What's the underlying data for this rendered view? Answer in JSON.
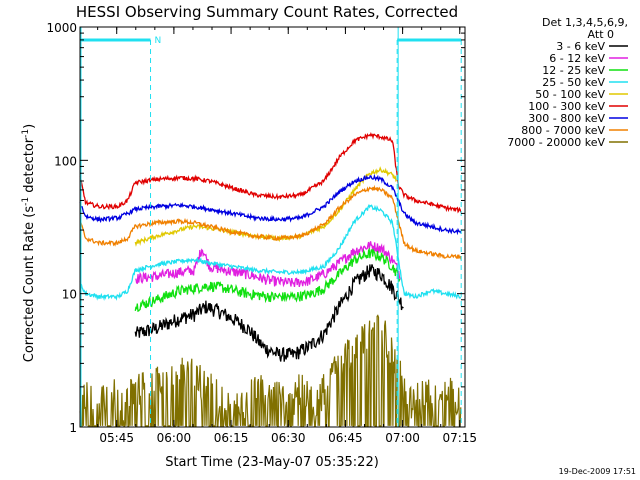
{
  "chart_data": {
    "type": "line",
    "title": "HESSI Observing Summary Count Rates, Corrected",
    "xlabel": "Start Time (23-May-07 05:35:22)",
    "ylabel_main": "Corrected Count Rate (s",
    "ylabel_sup1": "-1",
    "ylabel_mid": " detector",
    "ylabel_sup2": "-1",
    "ylabel_end": ")",
    "x_axis": {
      "unit": "minutes after 05:35:22",
      "range": [
        0,
        101
      ],
      "ticks": [
        {
          "value": 9.63,
          "label": "05:45"
        },
        {
          "value": 24.63,
          "label": "06:00"
        },
        {
          "value": 39.63,
          "label": "06:15"
        },
        {
          "value": 54.63,
          "label": "06:30"
        },
        {
          "value": 69.63,
          "label": "06:45"
        },
        {
          "value": 84.63,
          "label": "07:00"
        },
        {
          "value": 99.63,
          "label": "07:15"
        }
      ]
    },
    "y_axis": {
      "scale": "log",
      "range": [
        1,
        1000
      ],
      "ticks": [
        {
          "value": 1,
          "label": "1"
        },
        {
          "value": 10,
          "label": "10"
        },
        {
          "value": 100,
          "label": "100"
        },
        {
          "value": 1000,
          "label": "1000"
        }
      ]
    },
    "legend_header_1": "Det 1,3,4,5,6,9,",
    "legend_header_2": "Att 0",
    "legend_position": "top-right",
    "night_bar_label": "N",
    "night_bars": [
      [
        0,
        18.5
      ],
      [
        83.2,
        100
      ]
    ],
    "saa_markers": [
      18.5,
      83.2
    ],
    "vertical_lines": [
      0,
      83.2
    ],
    "series": [
      {
        "name": "3 - 6 keV",
        "color": "#000000",
        "x": [
          14.5,
          20,
          26,
          30,
          33,
          36,
          40,
          44,
          48,
          52,
          56,
          60,
          64,
          68,
          72,
          76,
          79,
          82,
          85
        ],
        "y": [
          5,
          5.5,
          6.5,
          7,
          8,
          7.5,
          6.5,
          5.5,
          4,
          3.5,
          3.5,
          4,
          5,
          8,
          12,
          15,
          14,
          11,
          8
        ]
      },
      {
        "name": "6 - 12 keV",
        "color": "#e020e0",
        "x": [
          14.5,
          20,
          26,
          30,
          32,
          34,
          38,
          44,
          50,
          56,
          60,
          64,
          68,
          72,
          76,
          79,
          82,
          84
        ],
        "y": [
          13,
          13.5,
          14.5,
          15,
          22,
          16,
          15,
          14,
          12.5,
          12,
          12.5,
          14,
          17,
          21,
          23,
          22,
          18,
          14
        ]
      },
      {
        "name": "12 - 25 keV",
        "color": "#10e010",
        "x": [
          14.5,
          20,
          26,
          30,
          34,
          38,
          44,
          50,
          56,
          60,
          64,
          68,
          72,
          76,
          79,
          82,
          84
        ],
        "y": [
          8,
          9,
          10.5,
          11,
          11.5,
          11,
          10,
          9.5,
          9.5,
          9.8,
          11,
          14,
          18,
          20,
          19,
          16,
          13
        ]
      },
      {
        "name": "25 - 50 keV",
        "color": "#20e0f0",
        "x": [
          0,
          1.5,
          5,
          10,
          12.5,
          14.5,
          20,
          26,
          30,
          34,
          40,
          46,
          52,
          58,
          64,
          68,
          72,
          76,
          79,
          82,
          85,
          88,
          92,
          96,
          100
        ],
        "y": [
          12,
          10,
          9.5,
          9.5,
          10.5,
          15,
          16.5,
          17.5,
          18,
          17,
          16,
          15,
          14.5,
          14.5,
          16,
          22,
          35,
          45,
          42,
          34,
          10,
          9.5,
          10.5,
          10,
          9.5
        ]
      },
      {
        "name": "50 - 100 keV",
        "color": "#e0c800",
        "x": [
          14.5,
          20,
          26,
          30,
          34,
          40,
          46,
          52,
          58,
          64,
          68,
          72,
          76,
          79,
          82,
          83.2
        ],
        "y": [
          24,
          27,
          30,
          32,
          31,
          29,
          27,
          26,
          27,
          32,
          42,
          60,
          80,
          85,
          78,
          70
        ]
      },
      {
        "name": "100 - 300 keV",
        "color": "#e00000",
        "x": [
          0,
          1.5,
          5,
          10,
          12.5,
          14.5,
          20,
          26,
          30,
          34,
          40,
          46,
          52,
          58,
          64,
          68,
          72,
          76,
          79,
          82,
          83.5,
          85,
          88,
          92,
          96,
          100
        ],
        "y": [
          75,
          48,
          45,
          45,
          50,
          68,
          72,
          74,
          73,
          70,
          62,
          55,
          53,
          55,
          70,
          105,
          140,
          155,
          150,
          140,
          65,
          55,
          50,
          47,
          44,
          42
        ]
      },
      {
        "name": "300 - 800 keV",
        "color": "#0000e0",
        "x": [
          0,
          1.5,
          5,
          10,
          12.5,
          14.5,
          20,
          26,
          30,
          34,
          40,
          46,
          52,
          58,
          64,
          68,
          72,
          76,
          79,
          82,
          85,
          88,
          92,
          96,
          100
        ],
        "y": [
          48,
          38,
          36,
          37,
          40,
          43,
          45,
          46,
          45,
          43,
          40,
          37,
          36,
          37,
          45,
          58,
          70,
          75,
          72,
          62,
          40,
          34,
          32,
          30,
          29
        ]
      },
      {
        "name": "800 - 7000 keV",
        "color": "#f08000",
        "x": [
          0,
          1.5,
          5,
          10,
          12.5,
          14.5,
          20,
          26,
          30,
          34,
          40,
          46,
          52,
          58,
          64,
          68,
          72,
          76,
          79,
          82,
          85,
          88,
          92,
          96,
          100
        ],
        "y": [
          35,
          26,
          24,
          24,
          26,
          32,
          34,
          35,
          34,
          32,
          29,
          27,
          26,
          27,
          33,
          44,
          55,
          62,
          60,
          52,
          24,
          21,
          20,
          19,
          19
        ]
      },
      {
        "name": "7000 - 20000 keV",
        "color": "#807000",
        "x": [
          0,
          2,
          5,
          8,
          11,
          14,
          18,
          22,
          26,
          30,
          34,
          38,
          42,
          46,
          50,
          54,
          58,
          62,
          64,
          66,
          68,
          70,
          72,
          74,
          76,
          78,
          80,
          82,
          84,
          87,
          90,
          94,
          98,
          100
        ],
        "y": [
          1.5,
          2,
          1.5,
          2,
          1.5,
          2,
          2,
          2.5,
          3,
          2.5,
          2,
          1.5,
          1.5,
          2,
          2,
          1.5,
          2,
          1.5,
          2,
          2.5,
          3,
          3.5,
          4,
          5,
          5,
          5.5,
          5,
          3.5,
          2.5,
          1.5,
          2,
          1.5,
          2,
          1.5
        ]
      }
    ]
  },
  "footer_timestamp": "19-Dec-2009 17:51"
}
